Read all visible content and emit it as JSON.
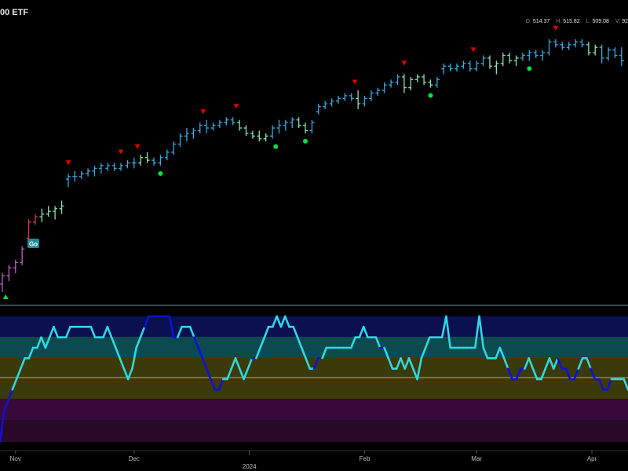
{
  "header": {
    "title": "00 ETF",
    "ohlc": [
      {
        "key": "O:",
        "value": "514.37"
      },
      {
        "key": "H:",
        "value": "515.82"
      },
      {
        "key": "L:",
        "value": "509.08"
      },
      {
        "key": "V:",
        "value": "92"
      }
    ]
  },
  "badge": {
    "go_label": "Go"
  },
  "colors": {
    "go_strong": "#3aa8e0",
    "go_weak": "#8ee0b0",
    "nogo": "#c060c0",
    "bear": "#d04040",
    "sell_marker": "#e00000",
    "buy_dot": "#00e040",
    "osc_go": "#30d8e0",
    "osc_nogo": "#1010d8",
    "zero_line": "#e08020"
  },
  "chart_data": {
    "type": "line",
    "ylim": [
      3,
      97
    ],
    "xlim": [
      0,
      189
    ],
    "price_bars": [
      {
        "x": 0,
        "o": 6,
        "h": 10,
        "l": 3,
        "c": 9,
        "color": "nogo"
      },
      {
        "x": 2,
        "o": 9,
        "h": 13,
        "l": 7,
        "c": 12,
        "color": "nogo"
      },
      {
        "x": 4,
        "o": 12,
        "h": 15,
        "l": 10,
        "c": 14,
        "color": "nogo"
      },
      {
        "x": 6,
        "o": 14,
        "h": 20,
        "l": 13,
        "c": 19,
        "color": "nogo"
      },
      {
        "x": 8,
        "o": 23,
        "h": 30,
        "l": 22,
        "c": 29,
        "color": "bear"
      },
      {
        "x": 10,
        "o": 29,
        "h": 32,
        "l": 28,
        "c": 31,
        "color": "bear"
      },
      {
        "x": 12,
        "o": 31,
        "h": 34,
        "l": 29,
        "c": 32,
        "color": "go_weak"
      },
      {
        "x": 14,
        "o": 32,
        "h": 35,
        "l": 31,
        "c": 33,
        "color": "go_weak"
      },
      {
        "x": 16,
        "o": 33,
        "h": 35,
        "l": 30,
        "c": 34,
        "color": "go_weak"
      },
      {
        "x": 18,
        "o": 34,
        "h": 37,
        "l": 32,
        "c": 35,
        "color": "go_weak"
      },
      {
        "x": 20,
        "o": 45,
        "h": 47,
        "l": 42,
        "c": 46,
        "color": "go_strong"
      },
      {
        "x": 22,
        "o": 46,
        "h": 48,
        "l": 44,
        "c": 46,
        "color": "go_strong"
      },
      {
        "x": 24,
        "o": 46,
        "h": 48,
        "l": 45,
        "c": 47,
        "color": "go_strong"
      },
      {
        "x": 26,
        "o": 47,
        "h": 49,
        "l": 46,
        "c": 48,
        "color": "go_strong"
      },
      {
        "x": 28,
        "o": 48,
        "h": 50,
        "l": 46,
        "c": 49,
        "color": "go_strong"
      },
      {
        "x": 30,
        "o": 49,
        "h": 51,
        "l": 47,
        "c": 50,
        "color": "go_strong"
      },
      {
        "x": 32,
        "o": 49,
        "h": 51,
        "l": 48,
        "c": 50,
        "color": "go_strong"
      },
      {
        "x": 34,
        "o": 50,
        "h": 51,
        "l": 48,
        "c": 49,
        "color": "go_strong"
      },
      {
        "x": 36,
        "o": 49,
        "h": 51,
        "l": 48,
        "c": 50,
        "color": "go_strong"
      },
      {
        "x": 38,
        "o": 50,
        "h": 52,
        "l": 49,
        "c": 51,
        "color": "go_strong"
      },
      {
        "x": 40,
        "o": 51,
        "h": 53,
        "l": 49,
        "c": 51,
        "color": "go_strong"
      },
      {
        "x": 42,
        "o": 51,
        "h": 54,
        "l": 50,
        "c": 53,
        "color": "go_weak"
      },
      {
        "x": 44,
        "o": 53,
        "h": 55,
        "l": 51,
        "c": 52,
        "color": "go_weak"
      },
      {
        "x": 46,
        "o": 52,
        "h": 53,
        "l": 50,
        "c": 51,
        "color": "go_strong"
      },
      {
        "x": 48,
        "o": 51,
        "h": 54,
        "l": 50,
        "c": 53,
        "color": "go_strong"
      },
      {
        "x": 50,
        "o": 53,
        "h": 56,
        "l": 52,
        "c": 55,
        "color": "go_strong"
      },
      {
        "x": 52,
        "o": 55,
        "h": 59,
        "l": 54,
        "c": 58,
        "color": "go_strong"
      },
      {
        "x": 54,
        "o": 58,
        "h": 62,
        "l": 57,
        "c": 61,
        "color": "go_strong"
      },
      {
        "x": 56,
        "o": 61,
        "h": 64,
        "l": 59,
        "c": 62,
        "color": "go_strong"
      },
      {
        "x": 58,
        "o": 62,
        "h": 64,
        "l": 60,
        "c": 63,
        "color": "go_strong"
      },
      {
        "x": 60,
        "o": 63,
        "h": 66,
        "l": 62,
        "c": 65,
        "color": "go_strong"
      },
      {
        "x": 62,
        "o": 65,
        "h": 67,
        "l": 62,
        "c": 64,
        "color": "go_strong"
      },
      {
        "x": 64,
        "o": 64,
        "h": 66,
        "l": 63,
        "c": 65,
        "color": "go_strong"
      },
      {
        "x": 66,
        "o": 65,
        "h": 67,
        "l": 64,
        "c": 66,
        "color": "go_strong"
      },
      {
        "x": 68,
        "o": 66,
        "h": 68,
        "l": 65,
        "c": 67,
        "color": "go_strong"
      },
      {
        "x": 70,
        "o": 67,
        "h": 68,
        "l": 65,
        "c": 66,
        "color": "go_strong"
      },
      {
        "x": 72,
        "o": 66,
        "h": 67,
        "l": 63,
        "c": 64,
        "color": "go_weak"
      },
      {
        "x": 74,
        "o": 64,
        "h": 65,
        "l": 61,
        "c": 62,
        "color": "go_weak"
      },
      {
        "x": 76,
        "o": 62,
        "h": 63,
        "l": 60,
        "c": 61,
        "color": "go_weak"
      },
      {
        "x": 78,
        "o": 61,
        "h": 63,
        "l": 59,
        "c": 60,
        "color": "go_weak"
      },
      {
        "x": 80,
        "o": 60,
        "h": 62,
        "l": 59,
        "c": 61,
        "color": "go_weak"
      },
      {
        "x": 82,
        "o": 61,
        "h": 65,
        "l": 60,
        "c": 64,
        "color": "go_strong"
      },
      {
        "x": 84,
        "o": 64,
        "h": 67,
        "l": 62,
        "c": 65,
        "color": "go_strong"
      },
      {
        "x": 86,
        "o": 65,
        "h": 67,
        "l": 63,
        "c": 66,
        "color": "go_strong"
      },
      {
        "x": 88,
        "o": 66,
        "h": 68,
        "l": 64,
        "c": 67,
        "color": "go_strong"
      },
      {
        "x": 90,
        "o": 67,
        "h": 68,
        "l": 64,
        "c": 65,
        "color": "go_weak"
      },
      {
        "x": 92,
        "o": 65,
        "h": 66,
        "l": 62,
        "c": 63,
        "color": "go_weak"
      },
      {
        "x": 94,
        "o": 63,
        "h": 67,
        "l": 62,
        "c": 66,
        "color": "go_strong"
      },
      {
        "x": 96,
        "o": 70,
        "h": 73,
        "l": 69,
        "c": 72,
        "color": "go_strong"
      },
      {
        "x": 98,
        "o": 72,
        "h": 74,
        "l": 71,
        "c": 73,
        "color": "go_strong"
      },
      {
        "x": 100,
        "o": 73,
        "h": 75,
        "l": 72,
        "c": 74,
        "color": "go_strong"
      },
      {
        "x": 102,
        "o": 74,
        "h": 76,
        "l": 73,
        "c": 75,
        "color": "go_strong"
      },
      {
        "x": 104,
        "o": 75,
        "h": 77,
        "l": 74,
        "c": 76,
        "color": "go_strong"
      },
      {
        "x": 106,
        "o": 76,
        "h": 77,
        "l": 74,
        "c": 75,
        "color": "go_strong"
      },
      {
        "x": 108,
        "o": 75,
        "h": 78,
        "l": 71,
        "c": 73,
        "color": "go_weak"
      },
      {
        "x": 110,
        "o": 73,
        "h": 76,
        "l": 72,
        "c": 75,
        "color": "go_strong"
      },
      {
        "x": 112,
        "o": 75,
        "h": 78,
        "l": 74,
        "c": 77,
        "color": "go_strong"
      },
      {
        "x": 114,
        "o": 77,
        "h": 79,
        "l": 76,
        "c": 78,
        "color": "go_strong"
      },
      {
        "x": 116,
        "o": 78,
        "h": 81,
        "l": 77,
        "c": 80,
        "color": "go_strong"
      },
      {
        "x": 118,
        "o": 80,
        "h": 82,
        "l": 79,
        "c": 81,
        "color": "go_strong"
      },
      {
        "x": 120,
        "o": 81,
        "h": 84,
        "l": 80,
        "c": 83,
        "color": "go_strong"
      },
      {
        "x": 122,
        "o": 83,
        "h": 84,
        "l": 77,
        "c": 79,
        "color": "go_weak"
      },
      {
        "x": 124,
        "o": 79,
        "h": 83,
        "l": 78,
        "c": 82,
        "color": "go_weak"
      },
      {
        "x": 126,
        "o": 82,
        "h": 84,
        "l": 81,
        "c": 83,
        "color": "go_weak"
      },
      {
        "x": 128,
        "o": 83,
        "h": 84,
        "l": 80,
        "c": 81,
        "color": "go_weak"
      },
      {
        "x": 130,
        "o": 81,
        "h": 82,
        "l": 79,
        "c": 80,
        "color": "go_weak"
      },
      {
        "x": 132,
        "o": 80,
        "h": 83,
        "l": 79,
        "c": 82,
        "color": "go_strong"
      },
      {
        "x": 134,
        "o": 86,
        "h": 88,
        "l": 84,
        "c": 87,
        "color": "go_strong"
      },
      {
        "x": 136,
        "o": 87,
        "h": 88,
        "l": 85,
        "c": 86,
        "color": "go_strong"
      },
      {
        "x": 138,
        "o": 86,
        "h": 88,
        "l": 85,
        "c": 87,
        "color": "go_strong"
      },
      {
        "x": 140,
        "o": 87,
        "h": 89,
        "l": 86,
        "c": 88,
        "color": "go_strong"
      },
      {
        "x": 142,
        "o": 88,
        "h": 89,
        "l": 85,
        "c": 86,
        "color": "go_strong"
      },
      {
        "x": 144,
        "o": 86,
        "h": 89,
        "l": 85,
        "c": 88,
        "color": "go_strong"
      },
      {
        "x": 146,
        "o": 88,
        "h": 91,
        "l": 87,
        "c": 90,
        "color": "go_strong"
      },
      {
        "x": 148,
        "o": 90,
        "h": 91,
        "l": 86,
        "c": 87,
        "color": "go_weak"
      },
      {
        "x": 150,
        "o": 87,
        "h": 89,
        "l": 84,
        "c": 88,
        "color": "go_weak"
      },
      {
        "x": 152,
        "o": 88,
        "h": 92,
        "l": 87,
        "c": 91,
        "color": "go_weak"
      },
      {
        "x": 154,
        "o": 91,
        "h": 92,
        "l": 88,
        "c": 89,
        "color": "go_weak"
      },
      {
        "x": 156,
        "o": 89,
        "h": 91,
        "l": 87,
        "c": 90,
        "color": "go_weak"
      },
      {
        "x": 158,
        "o": 90,
        "h": 92,
        "l": 89,
        "c": 91,
        "color": "go_strong"
      },
      {
        "x": 160,
        "o": 91,
        "h": 93,
        "l": 89,
        "c": 92,
        "color": "go_strong"
      },
      {
        "x": 162,
        "o": 92,
        "h": 93,
        "l": 90,
        "c": 91,
        "color": "go_strong"
      },
      {
        "x": 164,
        "o": 91,
        "h": 93,
        "l": 89,
        "c": 92,
        "color": "go_strong"
      },
      {
        "x": 166,
        "o": 92,
        "h": 97,
        "l": 91,
        "c": 96,
        "color": "go_strong"
      },
      {
        "x": 168,
        "o": 96,
        "h": 97,
        "l": 94,
        "c": 95,
        "color": "go_strong"
      },
      {
        "x": 170,
        "o": 95,
        "h": 96,
        "l": 93,
        "c": 94,
        "color": "go_strong"
      },
      {
        "x": 172,
        "o": 94,
        "h": 96,
        "l": 93,
        "c": 95,
        "color": "go_strong"
      },
      {
        "x": 174,
        "o": 95,
        "h": 97,
        "l": 94,
        "c": 96,
        "color": "go_strong"
      },
      {
        "x": 176,
        "o": 96,
        "h": 97,
        "l": 94,
        "c": 95,
        "color": "go_strong"
      },
      {
        "x": 178,
        "o": 95,
        "h": 96,
        "l": 91,
        "c": 92,
        "color": "go_weak"
      },
      {
        "x": 180,
        "o": 92,
        "h": 95,
        "l": 91,
        "c": 94,
        "color": "go_weak"
      },
      {
        "x": 182,
        "o": 94,
        "h": 95,
        "l": 88,
        "c": 90,
        "color": "go_strong"
      },
      {
        "x": 184,
        "o": 90,
        "h": 94,
        "l": 89,
        "c": 93,
        "color": "go_strong"
      },
      {
        "x": 186,
        "o": 93,
        "h": 94,
        "l": 90,
        "c": 91,
        "color": "go_strong"
      },
      {
        "x": 188,
        "o": 91,
        "h": 94,
        "l": 87,
        "c": 89,
        "color": "go_strong"
      }
    ],
    "sell_markers": [
      20,
      36,
      41,
      61,
      71,
      107,
      122,
      143,
      168
    ],
    "buy_dots": [
      48,
      83,
      92,
      130,
      160
    ],
    "go_start_marker": 1,
    "oscillator": {
      "ylim": [
        -6,
        6
      ],
      "zero": 0,
      "values": [
        -6,
        -3,
        -2,
        -1,
        0,
        1,
        2,
        2,
        3,
        3,
        4,
        3,
        4,
        5,
        4,
        4,
        4,
        5,
        5,
        5,
        5,
        5,
        5,
        4,
        4,
        4,
        5,
        4,
        3,
        2,
        1,
        0,
        1,
        3,
        4,
        5,
        6,
        6,
        6,
        6,
        6,
        6,
        4,
        4,
        5,
        5,
        5,
        4,
        3,
        2,
        1,
        0,
        -1,
        -1,
        0,
        0,
        1,
        2,
        1,
        0,
        1,
        2,
        2,
        3,
        4,
        5,
        5,
        6,
        5,
        6,
        5,
        5,
        4,
        3,
        2,
        1,
        1,
        2,
        2,
        3,
        3,
        3,
        3,
        3,
        3,
        3,
        4,
        4,
        5,
        4,
        4,
        4,
        3,
        3,
        2,
        1,
        1,
        2,
        1,
        2,
        1,
        0,
        2,
        3,
        4,
        4,
        4,
        4,
        6,
        3,
        3,
        3,
        3,
        3,
        3,
        3,
        6,
        3,
        2,
        2,
        2,
        3,
        2,
        1,
        0,
        0,
        1,
        1,
        2,
        1,
        0,
        0,
        1,
        2,
        1,
        2,
        1,
        1,
        0,
        0,
        1,
        2,
        2,
        1,
        0,
        0,
        -1,
        -1,
        0,
        0,
        0,
        0,
        -1
      ],
      "segments_color": [
        "osc_nogo",
        "osc_nogo",
        "osc_nogo",
        "osc_go",
        "osc_go",
        "osc_go",
        "osc_go",
        "osc_go",
        "osc_go",
        "osc_go",
        "osc_go",
        "osc_go",
        "osc_go",
        "osc_go",
        "osc_go",
        "osc_go",
        "osc_go",
        "osc_go",
        "osc_go",
        "osc_go",
        "osc_go",
        "osc_go",
        "osc_go",
        "osc_go",
        "osc_go",
        "osc_go",
        "osc_go",
        "osc_go",
        "osc_go",
        "osc_go",
        "osc_go",
        "osc_go",
        "osc_go",
        "osc_go",
        "osc_go",
        "osc_nogo",
        "osc_nogo",
        "osc_nogo",
        "osc_nogo",
        "osc_nogo",
        "osc_nogo",
        "osc_nogo",
        "osc_nogo",
        "osc_go",
        "osc_go",
        "osc_go",
        "osc_go",
        "osc_nogo",
        "osc_nogo",
        "osc_nogo",
        "osc_nogo",
        "osc_nogo",
        "osc_nogo",
        "osc_nogo",
        "osc_go",
        "osc_go",
        "osc_go",
        "osc_go",
        "osc_go",
        "osc_go",
        "osc_go",
        "osc_nogo",
        "osc_go",
        "osc_go",
        "osc_go",
        "osc_go",
        "osc_go",
        "osc_go",
        "osc_go",
        "osc_go",
        "osc_go",
        "osc_go",
        "osc_go",
        "osc_go",
        "osc_go",
        "osc_go",
        "osc_nogo",
        "osc_nogo",
        "osc_go",
        "osc_go",
        "osc_go",
        "osc_go",
        "osc_go",
        "osc_go",
        "osc_go",
        "osc_go",
        "osc_go",
        "osc_go",
        "osc_go",
        "osc_go",
        "osc_go",
        "osc_go",
        "osc_nogo",
        "osc_go",
        "osc_go",
        "osc_go",
        "osc_go",
        "osc_go",
        "osc_go",
        "osc_go",
        "osc_go",
        "osc_go",
        "osc_go",
        "osc_go",
        "osc_go",
        "osc_go",
        "osc_go",
        "osc_go",
        "osc_go",
        "osc_go",
        "osc_go",
        "osc_go",
        "osc_go",
        "osc_go",
        "osc_go",
        "osc_go",
        "osc_go",
        "osc_go",
        "osc_go",
        "osc_go",
        "osc_go",
        "osc_go",
        "osc_go",
        "osc_nogo",
        "osc_nogo",
        "osc_nogo",
        "osc_nogo",
        "osc_go",
        "osc_go",
        "osc_go",
        "osc_go",
        "osc_go",
        "osc_go",
        "osc_go",
        "osc_go",
        "osc_nogo",
        "osc_nogo",
        "osc_nogo",
        "osc_nogo",
        "osc_nogo",
        "osc_go",
        "osc_go",
        "osc_go",
        "osc_nogo",
        "osc_nogo",
        "osc_nogo",
        "osc_nogo",
        "osc_nogo",
        "osc_go",
        "osc_go",
        "osc_go",
        "osc_go",
        "osc_go",
        "osc_nogo",
        "osc_nogo"
      ]
    },
    "x_tick_labels": [
      {
        "x": 4,
        "label": "Nov"
      },
      {
        "x": 40,
        "label": "Dec"
      },
      {
        "x": 110,
        "label": "Feb"
      },
      {
        "x": 144,
        "label": "Mar"
      },
      {
        "x": 179,
        "label": "Apr"
      }
    ],
    "year_label": {
      "x": 75,
      "label": "2024"
    }
  }
}
